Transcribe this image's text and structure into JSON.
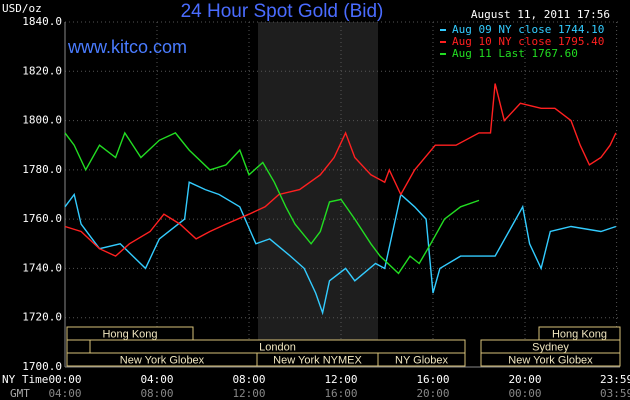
{
  "chart_data": {
    "type": "line",
    "title": "24 Hour Spot Gold (Bid)",
    "date": "August 11, 2011 17:56",
    "watermark": "www.kitco.com",
    "y_label": "USD/oz",
    "x_row_labels": [
      "NY Time",
      "GMT"
    ],
    "xlim": [
      0,
      24
    ],
    "ylim": [
      1700,
      1840
    ],
    "xticks": [
      {
        "value": 0,
        "label": "00:00"
      },
      {
        "value": 4,
        "label": "04:00"
      },
      {
        "value": 8,
        "label": "08:00"
      },
      {
        "value": 12,
        "label": "12:00"
      },
      {
        "value": 16,
        "label": "16:00"
      },
      {
        "value": 20,
        "label": "20:00"
      },
      {
        "value": 23.983,
        "label": "23:59"
      }
    ],
    "gmt_labels": [
      "04:00",
      "08:00",
      "12:00",
      "16:00",
      "20:00",
      "00:00",
      "03:59"
    ],
    "yticks": [
      {
        "value": 1700,
        "label": "1700.0"
      },
      {
        "value": 1720,
        "label": "1720.0"
      },
      {
        "value": 1740,
        "label": "1740.0"
      },
      {
        "value": 1760,
        "label": "1760.0"
      },
      {
        "value": 1780,
        "label": "1780.0"
      },
      {
        "value": 1800,
        "label": "1800.0"
      },
      {
        "value": 1820,
        "label": "1820.0"
      },
      {
        "value": 1840,
        "label": "1840.0"
      }
    ],
    "grid": true,
    "sessions": [
      "Hong Kong",
      "London",
      "New York Globex",
      "New York NYMEX",
      "NY Globex",
      "Hong Kong",
      "Sydney",
      "New York Globex"
    ],
    "series": [
      {
        "name": "Aug 09 NY close 1744.10",
        "color": "#33ccff",
        "x": [
          0,
          0.4,
          0.7,
          1.5,
          2.4,
          3.5,
          4.1,
          5.2,
          5.4,
          6.1,
          6.7,
          7.6,
          8.3,
          8.9,
          9.8,
          10.4,
          10.9,
          11.2,
          11.5,
          12.2,
          12.6,
          13.5,
          13.9,
          14.6,
          15.2,
          15.7,
          16.0,
          16.3,
          17.2,
          18.0,
          18.7,
          19.3,
          19.9,
          20.2,
          20.7,
          21.1,
          22.0,
          23.3,
          23.95
        ],
        "values": [
          1765,
          1770,
          1758,
          1748,
          1750,
          1740,
          1752,
          1760,
          1775,
          1772,
          1770,
          1765,
          1750,
          1752,
          1745,
          1740,
          1730,
          1722,
          1735,
          1740,
          1735,
          1742,
          1740,
          1770,
          1765,
          1760,
          1730,
          1740,
          1745,
          1745,
          1745,
          1755,
          1765,
          1750,
          1740,
          1755,
          1757,
          1755,
          1757
        ]
      },
      {
        "name": "Aug 10 NY close 1795.40",
        "color": "#ff2020",
        "x": [
          0,
          0.7,
          1.5,
          2.2,
          2.8,
          3.7,
          4.3,
          5.0,
          5.7,
          6.3,
          7.0,
          8.0,
          8.7,
          9.3,
          10.2,
          11.1,
          11.7,
          12.2,
          12.6,
          13.3,
          13.9,
          14.1,
          14.6,
          15.2,
          16.1,
          17.0,
          18.0,
          18.5,
          18.7,
          19.1,
          19.8,
          20.7,
          21.3,
          22.0,
          22.4,
          22.8,
          23.3,
          23.7,
          23.95
        ],
        "values": [
          1757,
          1755,
          1748,
          1745,
          1750,
          1755,
          1762,
          1758,
          1752,
          1755,
          1758,
          1762,
          1765,
          1770,
          1772,
          1778,
          1785,
          1795,
          1785,
          1778,
          1775,
          1780,
          1770,
          1780,
          1790,
          1790,
          1795,
          1795,
          1815,
          1800,
          1807,
          1805,
          1805,
          1800,
          1790,
          1782,
          1785,
          1790,
          1795
        ]
      },
      {
        "name": "Aug 11 Last 1767.60",
        "color": "#22dd22",
        "x": [
          0,
          0.4,
          0.9,
          1.5,
          2.2,
          2.6,
          3.3,
          4.1,
          4.8,
          5.4,
          6.3,
          7.0,
          7.6,
          8.0,
          8.6,
          9.1,
          9.6,
          10.0,
          10.7,
          11.1,
          11.5,
          12.0,
          12.6,
          13.3,
          13.7,
          14.5,
          15.0,
          15.4,
          15.9,
          16.5,
          17.2,
          18.0
        ],
        "values": [
          1795,
          1790,
          1780,
          1790,
          1785,
          1795,
          1785,
          1792,
          1795,
          1788,
          1780,
          1782,
          1788,
          1778,
          1783,
          1775,
          1765,
          1758,
          1750,
          1755,
          1767,
          1768,
          1760,
          1750,
          1745,
          1738,
          1745,
          1742,
          1750,
          1760,
          1765,
          1767.6
        ]
      }
    ]
  }
}
